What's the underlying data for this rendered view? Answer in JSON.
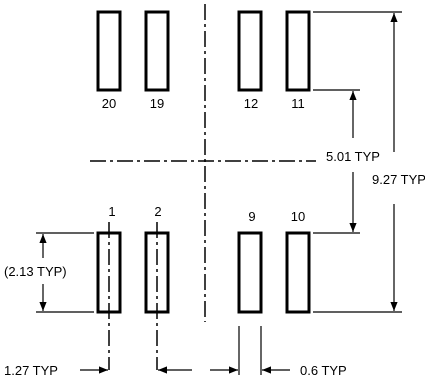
{
  "pins": {
    "top": [
      "20",
      "19",
      "12",
      "11"
    ],
    "bottom": [
      "1",
      "2",
      "9",
      "10"
    ]
  },
  "dimensions": {
    "pitch": "1.27 TYP",
    "pad_width": "0.6 TYP",
    "pad_length": "(2.13 TYP)",
    "inner_span": "5.01 TYP",
    "outer_span": "9.27 TYP"
  }
}
